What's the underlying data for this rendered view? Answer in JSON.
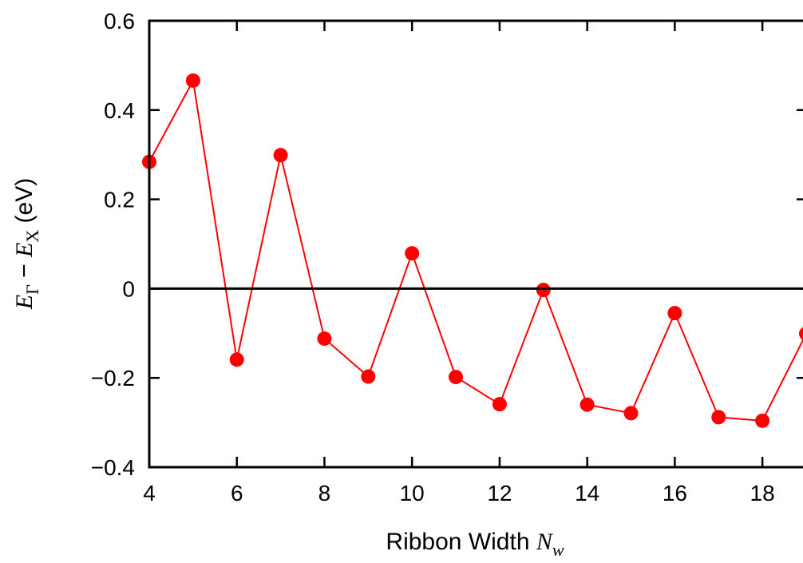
{
  "chart_data": {
    "type": "line",
    "title": "",
    "xlabel": "Ribbon Width N_w",
    "xlabel_parts": {
      "text": "Ribbon Width ",
      "var": "N",
      "sub": "w"
    },
    "ylabel": "E_Γ − E_X (eV)",
    "ylabel_parts": {
      "e1": "E",
      "s1": "Γ",
      "minus": " − ",
      "e2": "E",
      "s2": "X",
      "unit": " (eV)"
    },
    "xlim": [
      4,
      19
    ],
    "ylim": [
      -0.4,
      0.6
    ],
    "xticks": [
      4,
      6,
      8,
      10,
      12,
      14,
      16,
      18
    ],
    "xtick_labels": [
      "4",
      "6",
      "8",
      "10",
      "12",
      "14",
      "16",
      "18"
    ],
    "yticks": [
      -0.4,
      -0.2,
      0,
      0.2,
      0.4,
      0.6
    ],
    "ytick_labels": [
      "−0.4",
      "−0.2",
      "0",
      "0.2",
      "0.4",
      "0.6"
    ],
    "zero_line": true,
    "grid": false,
    "legend": "none",
    "series": [
      {
        "color": "#ff0000",
        "marker": "circle",
        "x": [
          4,
          5,
          6,
          7,
          8,
          9,
          10,
          11,
          12,
          13,
          14,
          15,
          16,
          17,
          18,
          19
        ],
        "y": [
          0.284,
          0.466,
          -0.159,
          0.299,
          -0.112,
          -0.197,
          0.079,
          -0.198,
          -0.259,
          -0.003,
          -0.26,
          -0.279,
          -0.055,
          -0.288,
          -0.296,
          -0.101
        ]
      }
    ]
  }
}
